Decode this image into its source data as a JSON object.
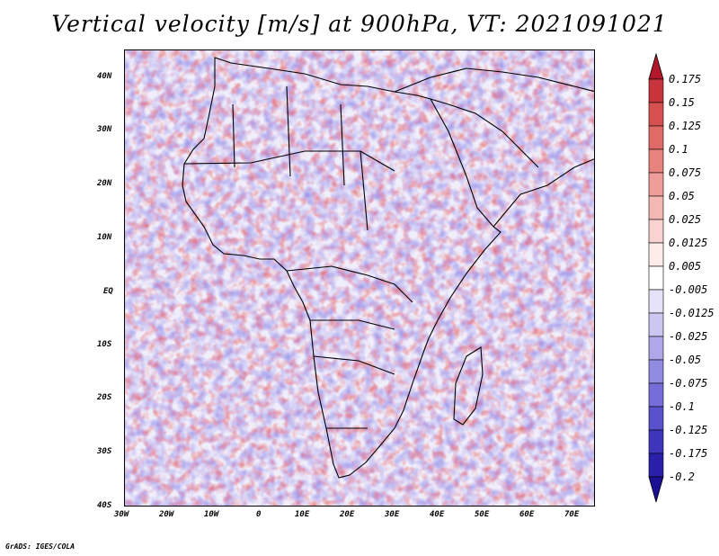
{
  "title": "Vertical velocity [m/s] at 900hPa, VT: 2021091021",
  "footer": "GrADS: IGES/COLA",
  "map": {
    "region": "Africa",
    "lon_range": [
      -30,
      75
    ],
    "lat_range": [
      -40,
      45
    ],
    "lat_labels": [
      "40N",
      "30N",
      "20N",
      "10N",
      "EQ",
      "10S",
      "20S",
      "30S",
      "40S"
    ],
    "lat_values": [
      40,
      30,
      20,
      10,
      0,
      -10,
      -20,
      -30,
      -40
    ],
    "lon_labels": [
      "30W",
      "20W",
      "10W",
      "0",
      "10E",
      "20E",
      "30E",
      "40E",
      "50E",
      "60E",
      "70E"
    ],
    "lon_values": [
      -30,
      -20,
      -10,
      0,
      10,
      20,
      30,
      40,
      50,
      60,
      70
    ]
  },
  "colorbar": {
    "labels": [
      "0.175",
      "0.15",
      "0.125",
      "0.1",
      "0.075",
      "0.05",
      "0.025",
      "0.0125",
      "0.005",
      "-0.005",
      "-0.0125",
      "-0.025",
      "-0.05",
      "-0.075",
      "-0.1",
      "-0.125",
      "-0.175",
      "-0.2"
    ],
    "colors": [
      "#b2182b",
      "#c8343c",
      "#d6504f",
      "#e06a66",
      "#e8837e",
      "#ee9d99",
      "#f3b8b4",
      "#f8d3d0",
      "#fdecea",
      "#ffffff",
      "#e6e3f8",
      "#cbc7f1",
      "#aea8ea",
      "#928be2",
      "#766dd8",
      "#5a51cc",
      "#3d36bd",
      "#2a1fa8",
      "#1a0f95"
    ]
  }
}
